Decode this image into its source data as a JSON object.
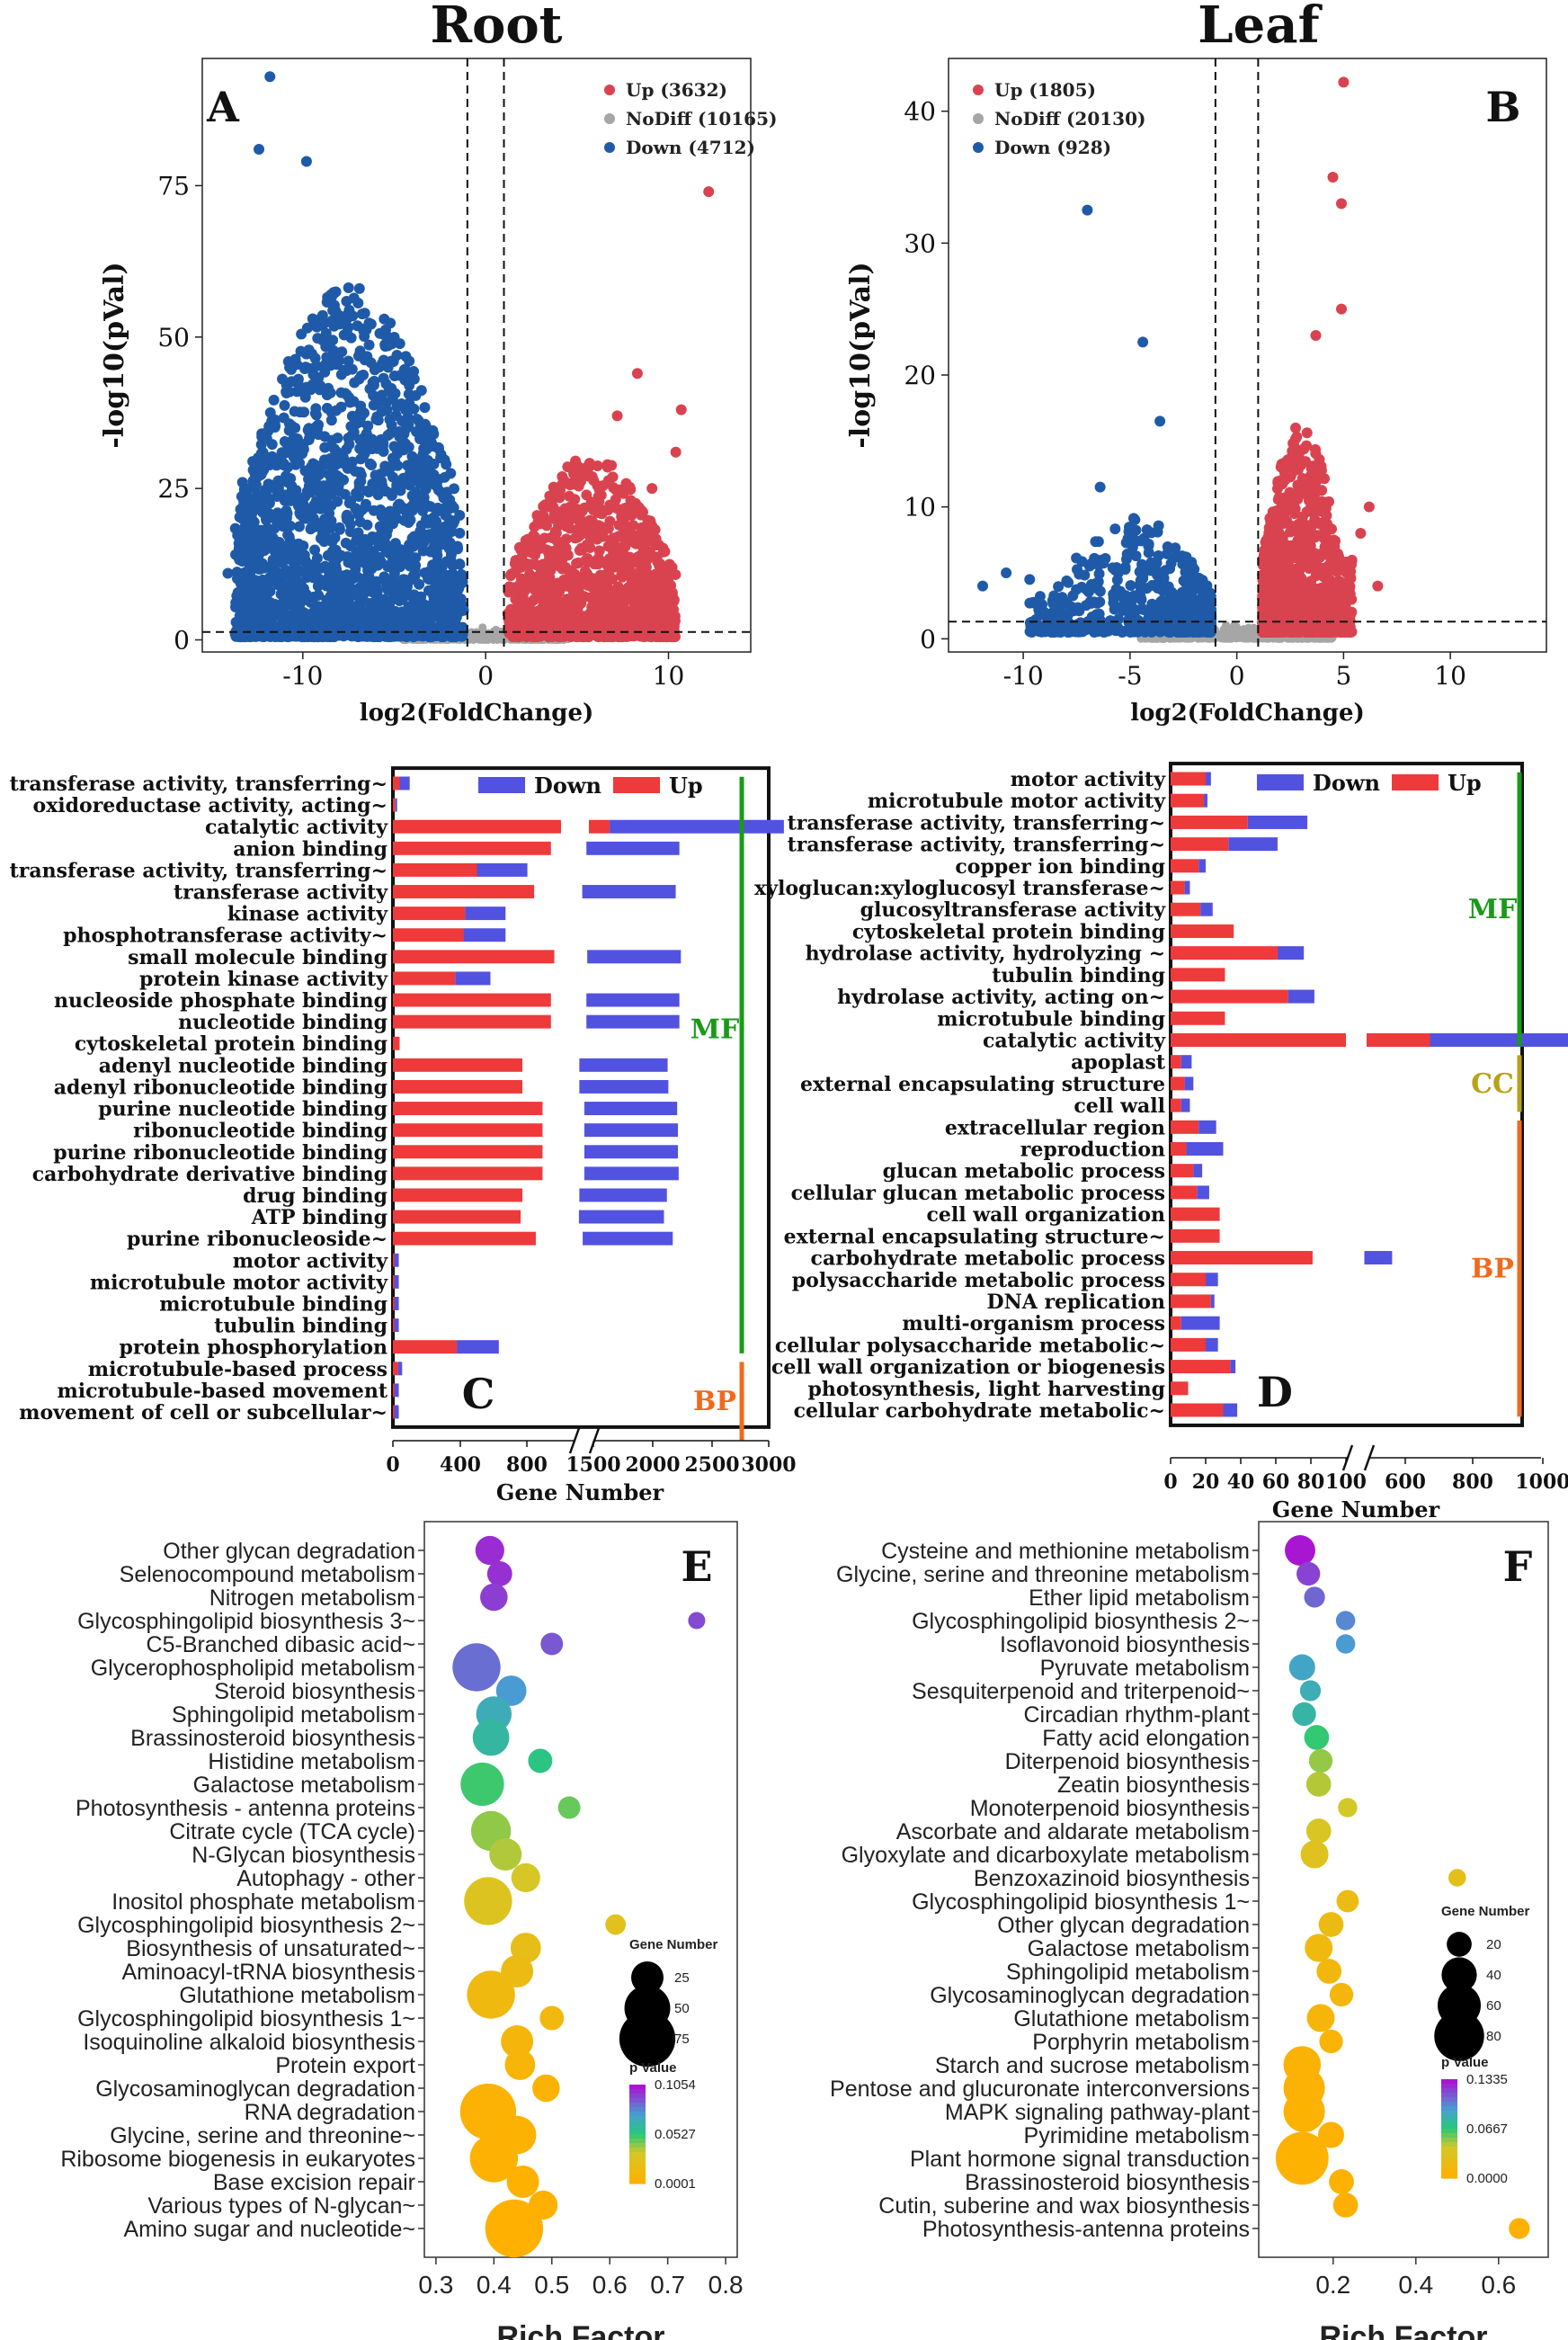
{
  "figure": {
    "root_title": "Root",
    "leaf_title": "Leaf",
    "colors": {
      "up": "#d9434f",
      "down": "#1f5aa8",
      "nodiff": "#a6a6a6",
      "bar_up": "#ee3a3a",
      "bar_down": "#5252e0",
      "mf": "#1a9a1a",
      "cc": "#b8a21a",
      "bp": "#f06a1e"
    }
  },
  "chart_data": [
    {
      "id": "A",
      "type": "scatter",
      "panel_label": "A",
      "title": "Root",
      "xlabel": "log2(FoldChange)",
      "ylabel": "-log10(pVal)",
      "xlim": [
        -15.5,
        14.5
      ],
      "ylim": [
        -2,
        96
      ],
      "xticks": [
        -10,
        0,
        10
      ],
      "xtick_labels": [
        "-10",
        "0",
        "10"
      ],
      "yticks": [
        0,
        25,
        50,
        75
      ],
      "ytick_labels": [
        "0",
        "25",
        "50",
        "75"
      ],
      "thresholds": {
        "x": [
          -1,
          1
        ],
        "y": 1.3
      },
      "legend": [
        {
          "label": "Up (3632)",
          "color": "#d9434f"
        },
        {
          "label": "NoDiff (10165)",
          "color": "#a6a6a6"
        },
        {
          "label": "Down (4712)",
          "color": "#1f5aa8"
        }
      ],
      "series": [
        {
          "name": "Up",
          "count": 3632,
          "x_range": [
            1.2,
            10.8
          ],
          "y_max": 74
        },
        {
          "name": "NoDiff",
          "count": 10165
        },
        {
          "name": "Down",
          "count": 4712,
          "x_range": [
            -14.5,
            -1.2
          ],
          "y_max": 93
        }
      ]
    },
    {
      "id": "B",
      "type": "scatter",
      "panel_label": "B",
      "title": "Leaf",
      "xlabel": "log2(FoldChange)",
      "ylabel": "-log10(pVal)",
      "xlim": [
        -13.5,
        14.5
      ],
      "ylim": [
        -1,
        44
      ],
      "xticks": [
        -10,
        -5,
        0,
        5,
        10
      ],
      "xtick_labels": [
        "-10",
        "-5",
        "0",
        "5",
        "10"
      ],
      "yticks": [
        0,
        10,
        20,
        30,
        40
      ],
      "ytick_labels": [
        "0",
        "10",
        "20",
        "30",
        "40"
      ],
      "thresholds": {
        "x": [
          -1,
          1
        ],
        "y": 1.3
      },
      "legend": [
        {
          "label": "Up (1805)",
          "color": "#d9434f"
        },
        {
          "label": "NoDiff (20130)",
          "color": "#a6a6a6"
        },
        {
          "label": "Down (928)",
          "color": "#1f5aa8"
        }
      ],
      "series": [
        {
          "name": "Up",
          "count": 1805,
          "x_range": [
            1.1,
            7.0
          ],
          "y_max": 42
        },
        {
          "name": "NoDiff",
          "count": 20130
        },
        {
          "name": "Down",
          "count": 928,
          "x_range": [
            -12.0,
            -1.1
          ],
          "y_max": 32.5
        }
      ]
    },
    {
      "id": "C",
      "type": "bar",
      "orientation": "horizontal-stacked",
      "panel_label": "C",
      "xlabel": "Gene Number",
      "legend": [
        "Down",
        "Up"
      ],
      "axis_break": [
        1000,
        1500
      ],
      "xtick_labels": [
        "0",
        "400",
        "800",
        "1500",
        "2000",
        "2500",
        "3000"
      ],
      "groups": [
        {
          "label": "MF",
          "from": 0,
          "to": 26
        },
        {
          "label": "BP",
          "from": 27,
          "to": 30
        }
      ],
      "categories": [
        "transferase activity, transferring~",
        "oxidoreductase activity, acting~",
        "catalytic activity",
        "anion binding",
        "transferase activity, transferring~",
        "transferase activity",
        "kinase activity",
        "phosphotransferase activity~",
        "small molecule binding",
        "protein kinase activity",
        "nucleoside phosphate binding",
        "nucleotide binding",
        "cytoskeletal protein binding",
        "adenyl nucleotide binding",
        "adenyl ribonucleotide binding",
        "purine nucleotide binding",
        "ribonucleotide binding",
        "purine ribonucleotide binding",
        "carbohydrate derivative binding",
        "drug binding",
        "ATP binding",
        "purine ribonucleoside~",
        "motor activity",
        "microtubule motor activity",
        "microtubule binding",
        "tubulin binding",
        "protein phosphorylation",
        "microtubule-based process",
        "microtubule-based movement",
        "movement of cell or subcellular~"
      ],
      "series": [
        {
          "name": "Up",
          "values": [
            40,
            15,
            1500,
            940,
            500,
            840,
            430,
            420,
            960,
            370,
            940,
            940,
            40,
            770,
            770,
            890,
            890,
            890,
            890,
            770,
            760,
            850,
            10,
            10,
            10,
            10,
            380,
            30,
            10,
            10
          ]
        },
        {
          "name": "Down",
          "values": [
            60,
            10,
            1150,
            290,
            300,
            340,
            240,
            250,
            290,
            210,
            290,
            290,
            0,
            300,
            310,
            310,
            320,
            320,
            330,
            290,
            260,
            290,
            25,
            25,
            25,
            25,
            250,
            25,
            25,
            25
          ]
        }
      ]
    },
    {
      "id": "D",
      "type": "bar",
      "orientation": "horizontal-stacked",
      "panel_label": "D",
      "xlabel": "Gene Number",
      "legend": [
        "Down",
        "Up"
      ],
      "axis_break": [
        100,
        500
      ],
      "xtick_labels": [
        "0",
        "20",
        "40",
        "60",
        "80",
        "100",
        "600",
        "800",
        "1000"
      ],
      "groups": [
        {
          "label": "MF",
          "from": 0,
          "to": 12
        },
        {
          "label": "CC",
          "from": 13,
          "to": 15
        },
        {
          "label": "BP",
          "from": 16,
          "to": 29
        }
      ],
      "categories": [
        "motor activity",
        "microtubule motor activity",
        "transferase activity, transferring~",
        "transferase activity, transferring~",
        "copper ion binding",
        "xyloglucan:xyloglucosyl transferase~",
        "glucosyltransferase activity",
        "cytoskeletal protein binding",
        "hydrolase activity, hydrolyzing ~",
        "tubulin binding",
        "hydrolase activity, acting on~",
        "microtubule binding",
        "catalytic activity",
        "apoplast",
        "external encapsulating structure",
        "cell wall",
        "extracellular region",
        "reproduction",
        "glucan metabolic process",
        "cellular glucan metabolic process",
        "cell wall organization",
        "external encapsulating structure~",
        "carbohydrate metabolic process",
        "polysaccharide metabolic process",
        "DNA replication",
        "multi-organism process",
        "cellular polysaccharide metabolic~",
        "cell wall organization or biogenesis",
        "photosynthesis, light harvesting",
        "cellular carbohydrate metabolic~"
      ],
      "series": [
        {
          "name": "Up",
          "values": [
            20,
            19,
            44,
            33,
            16,
            8,
            17,
            36,
            61,
            31,
            67,
            31,
            630,
            6,
            8,
            6,
            16,
            9,
            13,
            15,
            28,
            28,
            81,
            20,
            23,
            6,
            20,
            34,
            10,
            30
          ]
        },
        {
          "name": "Down",
          "values": [
            3,
            2,
            34,
            28,
            4,
            3,
            7,
            0,
            15,
            0,
            15,
            0,
            250,
            6,
            5,
            5,
            10,
            21,
            5,
            7,
            0,
            0,
            20,
            7,
            2,
            22,
            7,
            3,
            0,
            8
          ]
        }
      ]
    },
    {
      "id": "E",
      "type": "scatter",
      "subtype": "bubble",
      "panel_label": "E",
      "xlabel": "Rich Factor",
      "xlim": [
        0.28,
        0.82
      ],
      "xticks": [
        0.3,
        0.4,
        0.5,
        0.6,
        0.7,
        0.8
      ],
      "xtick_labels": [
        "0.3",
        "0.4",
        "0.5",
        "0.6",
        "0.7",
        "0.8"
      ],
      "size_legend_title": "Gene Number",
      "size_legend": [
        25,
        50,
        75
      ],
      "size_legend_labels": [
        "25",
        "50",
        "75"
      ],
      "color_legend_title": "p Value",
      "color_range": [
        0.0001,
        0.1054
      ],
      "color_labels": [
        "0.1054",
        "0.0527",
        "0.0001"
      ],
      "categories": [
        "Other glycan degradation",
        "Selenocompound metabolism",
        "Nitrogen metabolism",
        "Glycosphingolipid biosynthesis 3~",
        "C5-Branched dibasic acid~",
        "Glycerophospholipid metabolism",
        "Steroid biosynthesis",
        "Sphingolipid metabolism",
        "Brassinosteroid biosynthesis",
        "Histidine metabolism",
        "Galactose metabolism",
        "Photosynthesis - antenna proteins",
        "Citrate cycle (TCA cycle)",
        "N-Glycan biosynthesis",
        "Autophagy - other",
        "Inositol phosphate metabolism",
        "Glycosphingolipid biosynthesis 2~",
        "Biosynthesis of unsaturated~",
        "Aminoacyl-tRNA biosynthesis",
        "Glutathione metabolism",
        "Glycosphingolipid biosynthesis 1~",
        "Isoquinoline alkaloid biosynthesis",
        "Protein export",
        "Glycosaminoglycan degradation",
        "RNA degradation",
        "Glycine, serine and threonine~",
        "Ribosome biogenesis in eukaryotes",
        "Base excision repair",
        "Various types of N-glycan~",
        "Amino sugar and nucleotide~"
      ],
      "x": [
        0.393,
        0.41,
        0.4,
        0.75,
        0.5,
        0.37,
        0.43,
        0.4,
        0.395,
        0.48,
        0.38,
        0.53,
        0.395,
        0.42,
        0.455,
        0.39,
        0.61,
        0.455,
        0.44,
        0.395,
        0.5,
        0.44,
        0.445,
        0.49,
        0.39,
        0.44,
        0.4,
        0.45,
        0.485,
        0.435
      ],
      "sizes": [
        20,
        15,
        18,
        7,
        12,
        55,
        22,
        30,
        32,
        14,
        45,
        12,
        38,
        25,
        20,
        55,
        10,
        22,
        25,
        55,
        14,
        25,
        22,
        18,
        75,
        35,
        55,
        25,
        20,
        80
      ],
      "pvalues": [
        0.1,
        0.099,
        0.096,
        0.093,
        0.09,
        0.085,
        0.075,
        0.068,
        0.062,
        0.055,
        0.05,
        0.045,
        0.04,
        0.036,
        0.03,
        0.025,
        0.022,
        0.018,
        0.015,
        0.012,
        0.01,
        0.008,
        0.006,
        0.004,
        0.003,
        0.002,
        0.0015,
        0.001,
        0.0005,
        0.0002
      ]
    },
    {
      "id": "F",
      "type": "scatter",
      "subtype": "bubble",
      "panel_label": "F",
      "xlabel": "Rich Factor",
      "xlim": [
        0.02,
        0.72
      ],
      "xticks": [
        0.2,
        0.4,
        0.6
      ],
      "xtick_labels": [
        "0.2",
        "0.4",
        "0.6"
      ],
      "size_legend_title": "Gene Number",
      "size_legend": [
        20,
        40,
        60,
        80
      ],
      "size_legend_labels": [
        "20",
        "40",
        "60",
        "80"
      ],
      "color_legend_title": "p Value",
      "color_range": [
        0.0,
        0.1335
      ],
      "color_labels": [
        "0.1335",
        "0.0667",
        "0.0000"
      ],
      "categories": [
        "Cysteine and methionine metabolism",
        "Glycine, serine and threonine metabolism",
        "Ether lipid metabolism",
        "Glycosphingolipid biosynthesis 2~",
        "Isoflavonoid biosynthesis",
        "Pyruvate metabolism",
        "Sesquiterpenoid and triterpenoid~",
        "Circadian rhythm-plant",
        "Fatty acid elongation",
        "Diterpenoid biosynthesis",
        "Zeatin biosynthesis",
        "Monoterpenoid biosynthesis",
        "Ascorbate and aldarate metabolism",
        "Glyoxylate and dicarboxylate metabolism",
        "Benzoxazinoid biosynthesis",
        "Glycosphingolipid biosynthesis 1~",
        "Other glycan degradation",
        "Galactose metabolism",
        "Sphingolipid metabolism",
        "Glycosaminoglycan degradation",
        "Glutathione metabolism",
        "Porphyrin metabolism",
        "Starch and sucrose metabolism",
        "Pentose and glucuronate interconversions",
        "MAPK signaling pathway-plant",
        "Pyrimidine metabolism",
        "Plant hormone signal transduction",
        "Brassinosteroid biosynthesis",
        "Cutin, suberine and wax biosynthesis",
        "Photosynthesis-antenna proteins"
      ],
      "x": [
        0.12,
        0.14,
        0.155,
        0.23,
        0.23,
        0.125,
        0.145,
        0.13,
        0.16,
        0.17,
        0.165,
        0.235,
        0.165,
        0.155,
        0.5,
        0.235,
        0.195,
        0.165,
        0.19,
        0.22,
        0.17,
        0.195,
        0.125,
        0.13,
        0.13,
        0.195,
        0.125,
        0.22,
        0.23,
        0.65
      ],
      "sizes": [
        30,
        18,
        14,
        12,
        12,
        22,
        14,
        18,
        20,
        18,
        20,
        12,
        20,
        25,
        10,
        16,
        20,
        25,
        20,
        18,
        25,
        18,
        45,
        55,
        55,
        22,
        90,
        20,
        20,
        14
      ],
      "pvalues": [
        0.133,
        0.12,
        0.11,
        0.1,
        0.095,
        0.09,
        0.085,
        0.08,
        0.065,
        0.05,
        0.045,
        0.04,
        0.035,
        0.03,
        0.025,
        0.02,
        0.018,
        0.015,
        0.012,
        0.01,
        0.008,
        0.006,
        0.005,
        0.004,
        0.003,
        0.002,
        0.0015,
        0.001,
        0.0005,
        0.0002
      ]
    }
  ]
}
